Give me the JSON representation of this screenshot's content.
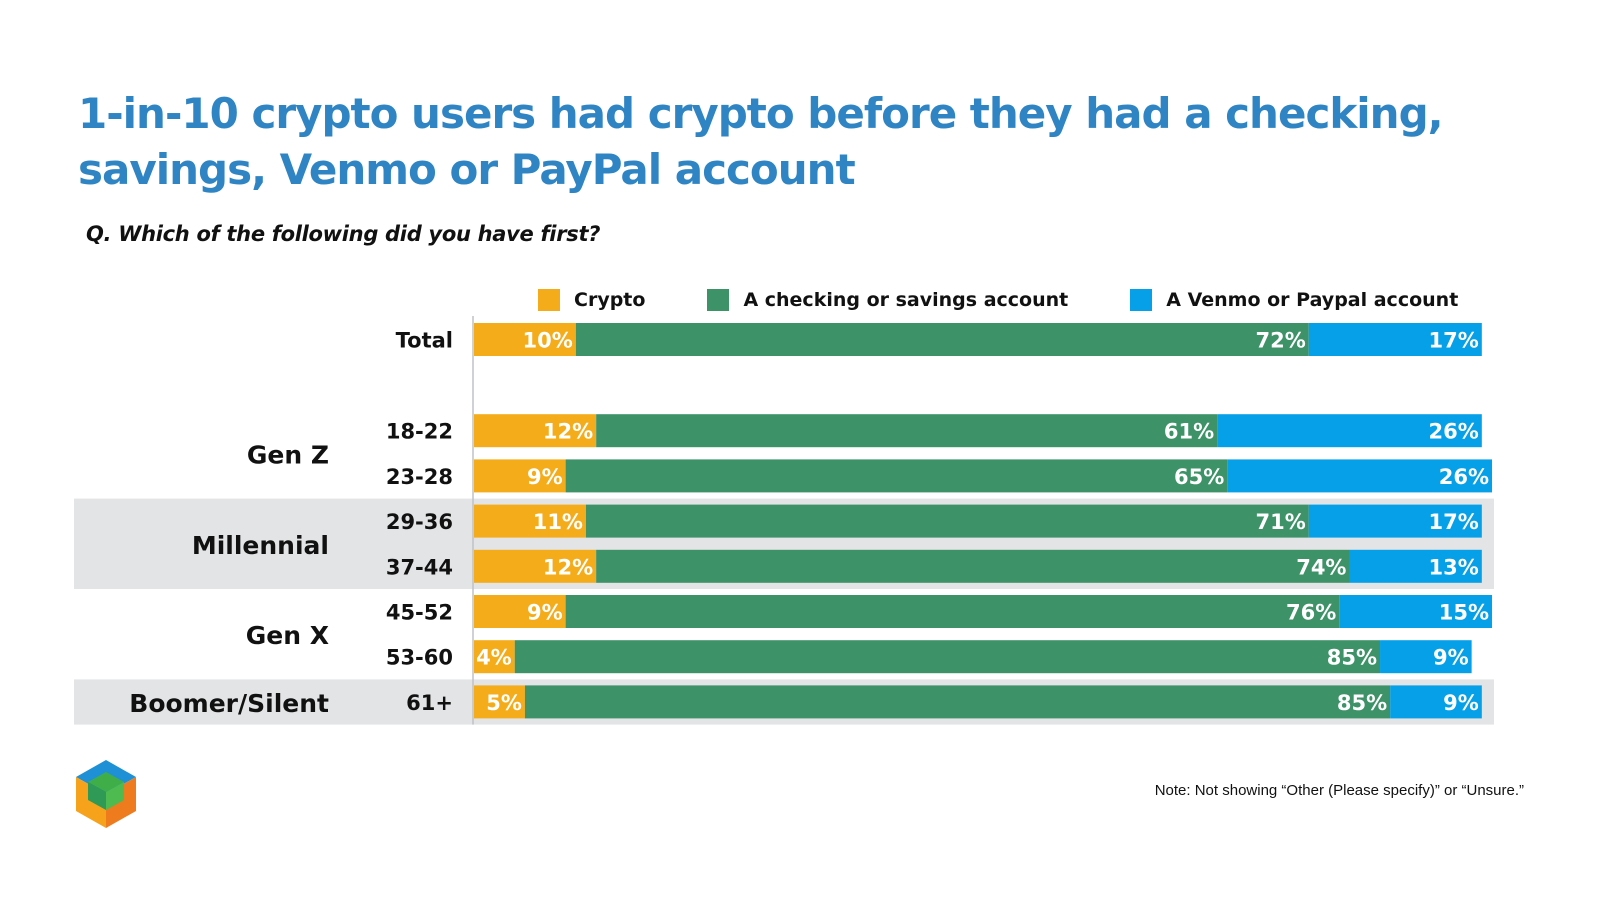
{
  "title": "1-in-10 crypto users had crypto before they had a checking, savings, Venmo or PayPal account",
  "subtitle": "Q. Which of the following did you have first?",
  "note": "Note: Not showing “Other (Please specify)” or “Unsure.”",
  "colors": {
    "crypto": "#f5ac1b",
    "checking": "#3d9268",
    "venmo": "#06a0e8",
    "title": "#2f85c3",
    "band": "#e3e4e6"
  },
  "chart_data": {
    "type": "bar",
    "orientation": "horizontal",
    "stacked": true,
    "title": "1-in-10 crypto users had crypto before they had a checking, savings, Venmo or PayPal account",
    "xlabel": "",
    "ylabel": "",
    "xlim": [
      0,
      100
    ],
    "legend": "top",
    "series": [
      {
        "name": "Crypto",
        "key": "crypto"
      },
      {
        "name": "A checking or savings account",
        "key": "checking"
      },
      {
        "name": "A Venmo or Paypal account",
        "key": "venmo"
      }
    ],
    "groups": [
      {
        "label": "",
        "shaded": false,
        "rows": [
          {
            "label": "Total",
            "values": [
              10,
              72,
              17
            ]
          }
        ]
      },
      {
        "label": "Gen Z",
        "shaded": false,
        "rows": [
          {
            "label": "18-22",
            "values": [
              12,
              61,
              26
            ]
          },
          {
            "label": "23-28",
            "values": [
              9,
              65,
              26
            ]
          }
        ]
      },
      {
        "label": "Millennial",
        "shaded": true,
        "rows": [
          {
            "label": "29-36",
            "values": [
              11,
              71,
              17
            ]
          },
          {
            "label": "37-44",
            "values": [
              12,
              74,
              13
            ]
          }
        ]
      },
      {
        "label": "Gen X",
        "shaded": false,
        "rows": [
          {
            "label": "45-52",
            "values": [
              9,
              76,
              15
            ]
          },
          {
            "label": "53-60",
            "values": [
              4,
              85,
              9
            ]
          }
        ]
      },
      {
        "label": "Boomer/Silent",
        "shaded": true,
        "rows": [
          {
            "label": "61+",
            "values": [
              5,
              85,
              9
            ]
          }
        ]
      }
    ]
  }
}
